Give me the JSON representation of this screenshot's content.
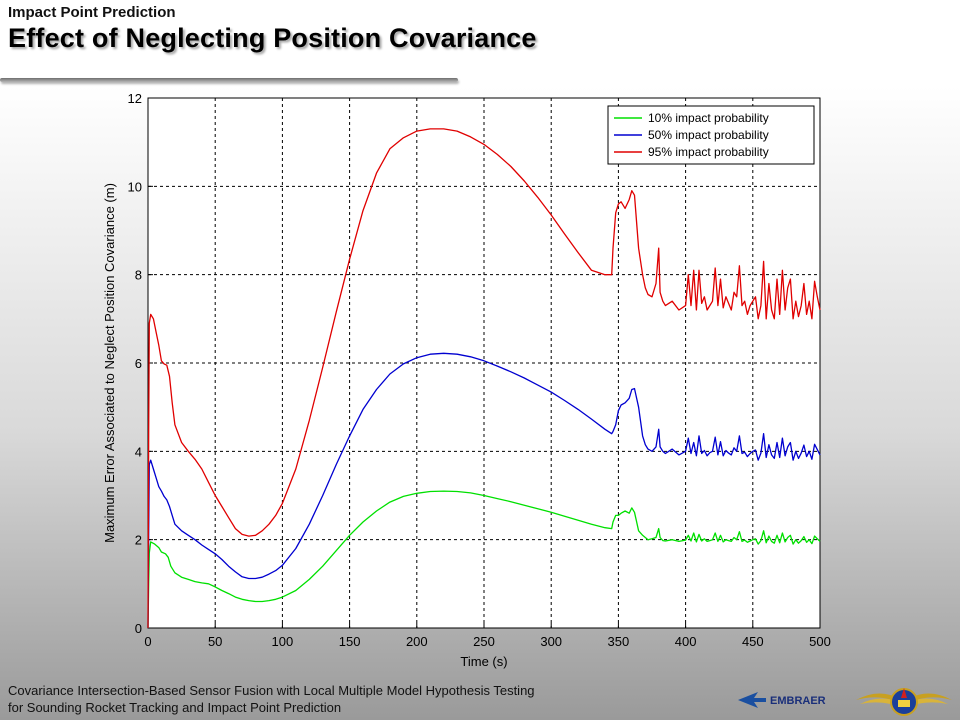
{
  "header": {
    "subtitle": "Impact Point Prediction",
    "title": "Effect of Neglecting Position Covariance"
  },
  "footer": {
    "line1": "Covariance Intersection-Based Sensor Fusion with Local Multiple Model Hypothesis Testing",
    "line2": "for Sounding Rocket Tracking and Impact Point Prediction"
  },
  "logos": {
    "embraer": "EMBRAER",
    "ita_icon": "ita-wings-emblem"
  },
  "chart_data": {
    "type": "line",
    "title": "",
    "xlabel": "Time (s)",
    "ylabel": "Maximum Error Associated to Neglect Position Covariance (m)",
    "xlim": [
      0,
      500
    ],
    "ylim": [
      0,
      12
    ],
    "xticks": [
      0,
      50,
      100,
      150,
      200,
      250,
      300,
      350,
      400,
      450,
      500
    ],
    "yticks": [
      0,
      2,
      4,
      6,
      8,
      10,
      12
    ],
    "grid": true,
    "legend_position": "top-right",
    "series": [
      {
        "name": "10% impact probability",
        "color": "#00e000",
        "x": [
          0,
          0.5,
          1,
          2,
          5,
          8,
          10,
          13,
          15,
          17,
          20,
          25,
          30,
          35,
          40,
          45,
          50,
          55,
          60,
          65,
          70,
          75,
          80,
          85,
          90,
          95,
          100,
          110,
          120,
          130,
          140,
          150,
          160,
          170,
          180,
          190,
          200,
          210,
          220,
          230,
          240,
          250,
          260,
          270,
          280,
          290,
          300,
          310,
          320,
          330,
          340,
          345,
          346,
          348,
          350,
          352,
          355,
          358,
          360,
          362,
          365,
          368,
          370,
          372,
          375,
          378,
          380,
          381,
          383,
          385,
          390,
          395,
          400,
          402,
          404,
          406,
          408,
          410,
          412,
          414,
          416,
          418,
          420,
          422,
          424,
          426,
          428,
          430,
          432,
          434,
          436,
          438,
          440,
          442,
          444,
          446,
          448,
          450,
          452,
          454,
          456,
          458,
          460,
          462,
          464,
          466,
          468,
          470,
          472,
          474,
          476,
          478,
          480,
          482,
          484,
          486,
          488,
          490,
          492,
          494,
          496,
          498,
          500
        ],
        "y": [
          0,
          1.0,
          1.7,
          1.95,
          1.9,
          1.82,
          1.72,
          1.68,
          1.6,
          1.4,
          1.25,
          1.15,
          1.1,
          1.05,
          1.02,
          1.0,
          0.93,
          0.85,
          0.78,
          0.7,
          0.65,
          0.62,
          0.6,
          0.6,
          0.62,
          0.65,
          0.7,
          0.85,
          1.1,
          1.4,
          1.75,
          2.1,
          2.4,
          2.65,
          2.85,
          2.98,
          3.05,
          3.09,
          3.1,
          3.09,
          3.06,
          3.0,
          2.93,
          2.86,
          2.78,
          2.7,
          2.62,
          2.53,
          2.44,
          2.35,
          2.27,
          2.25,
          2.4,
          2.55,
          2.55,
          2.6,
          2.65,
          2.6,
          2.72,
          2.62,
          2.2,
          2.1,
          2.05,
          2.0,
          2.02,
          2.05,
          2.25,
          2.05,
          1.98,
          1.97,
          2.0,
          1.96,
          1.99,
          2.1,
          1.97,
          2.15,
          1.95,
          2.12,
          1.97,
          2.02,
          1.96,
          1.98,
          2.0,
          2.15,
          1.96,
          2.1,
          1.95,
          2.0,
          1.98,
          1.96,
          2.05,
          2.0,
          2.18,
          1.96,
          1.99,
          1.94,
          1.97,
          2.0,
          2.02,
          1.9,
          1.98,
          2.2,
          1.93,
          2.08,
          1.96,
          1.92,
          2.1,
          1.93,
          2.15,
          1.95,
          2.05,
          2.1,
          1.9,
          2.0,
          1.92,
          1.98,
          2.07,
          1.94,
          2.0,
          1.91,
          2.08,
          2.02,
          1.96
        ]
      },
      {
        "name": "50% impact probability",
        "color": "#0000d0",
        "x": [
          0,
          0.5,
          1,
          2,
          4,
          6,
          8,
          10,
          12,
          14,
          16,
          18,
          20,
          25,
          30,
          35,
          40,
          45,
          50,
          55,
          60,
          65,
          70,
          75,
          80,
          85,
          90,
          95,
          100,
          110,
          120,
          130,
          140,
          150,
          160,
          170,
          180,
          190,
          200,
          210,
          220,
          230,
          240,
          250,
          260,
          270,
          280,
          290,
          300,
          310,
          320,
          330,
          340,
          345,
          346,
          348,
          350,
          352,
          355,
          358,
          360,
          362,
          365,
          368,
          370,
          372,
          375,
          378,
          380,
          381,
          383,
          385,
          390,
          395,
          400,
          402,
          404,
          406,
          408,
          410,
          412,
          414,
          416,
          418,
          420,
          422,
          424,
          426,
          428,
          430,
          432,
          434,
          436,
          438,
          440,
          442,
          444,
          446,
          448,
          450,
          452,
          454,
          456,
          458,
          460,
          462,
          464,
          466,
          468,
          470,
          472,
          474,
          476,
          478,
          480,
          482,
          484,
          486,
          488,
          490,
          492,
          494,
          496,
          498,
          500
        ],
        "y": [
          0,
          2.2,
          3.7,
          3.8,
          3.6,
          3.4,
          3.2,
          3.1,
          2.98,
          2.9,
          2.75,
          2.55,
          2.35,
          2.2,
          2.1,
          2.0,
          1.88,
          1.78,
          1.68,
          1.55,
          1.4,
          1.27,
          1.16,
          1.12,
          1.12,
          1.15,
          1.22,
          1.3,
          1.42,
          1.8,
          2.35,
          3.0,
          3.7,
          4.35,
          4.95,
          5.4,
          5.75,
          5.98,
          6.12,
          6.2,
          6.22,
          6.2,
          6.14,
          6.05,
          5.93,
          5.8,
          5.66,
          5.5,
          5.34,
          5.15,
          4.95,
          4.73,
          4.5,
          4.4,
          4.45,
          4.6,
          4.92,
          5.05,
          5.1,
          5.2,
          5.4,
          5.42,
          5.0,
          4.35,
          4.15,
          4.05,
          4.0,
          4.1,
          4.5,
          4.1,
          4.0,
          3.95,
          4.05,
          3.92,
          4.0,
          4.3,
          3.95,
          4.2,
          3.9,
          4.35,
          3.95,
          4.02,
          3.9,
          3.97,
          4.0,
          4.32,
          3.92,
          4.22,
          3.9,
          4.02,
          3.96,
          3.92,
          4.08,
          4.0,
          4.35,
          3.95,
          3.98,
          3.88,
          3.95,
          4.0,
          4.03,
          3.8,
          3.96,
          4.4,
          3.86,
          4.15,
          3.92,
          3.84,
          4.2,
          3.86,
          4.3,
          3.9,
          4.1,
          4.2,
          3.8,
          4.0,
          3.84,
          3.96,
          4.14,
          3.88,
          4.0,
          3.82,
          4.16,
          4.04,
          3.92
        ]
      },
      {
        "name": "95% impact probability",
        "color": "#e00000",
        "x": [
          0,
          0.5,
          1,
          2,
          4,
          6,
          8,
          10,
          12,
          14,
          16,
          18,
          20,
          25,
          30,
          35,
          40,
          45,
          50,
          55,
          60,
          65,
          70,
          75,
          80,
          85,
          90,
          95,
          100,
          110,
          120,
          130,
          140,
          150,
          160,
          170,
          180,
          190,
          200,
          210,
          220,
          230,
          240,
          250,
          260,
          270,
          280,
          290,
          300,
          310,
          320,
          330,
          340,
          345,
          346,
          348,
          350,
          352,
          355,
          358,
          360,
          362,
          365,
          368,
          370,
          372,
          375,
          378,
          380,
          381,
          383,
          385,
          390,
          395,
          400,
          402,
          404,
          406,
          408,
          410,
          412,
          414,
          416,
          418,
          420,
          422,
          424,
          426,
          428,
          430,
          432,
          434,
          436,
          438,
          440,
          442,
          444,
          446,
          448,
          450,
          452,
          454,
          456,
          458,
          460,
          462,
          464,
          466,
          468,
          470,
          472,
          474,
          476,
          478,
          480,
          482,
          484,
          486,
          488,
          490,
          492,
          494,
          496,
          498,
          500
        ],
        "y": [
          0,
          4.5,
          6.9,
          7.1,
          7.0,
          6.7,
          6.4,
          6.05,
          5.98,
          5.95,
          5.7,
          5.1,
          4.6,
          4.2,
          4.0,
          3.82,
          3.6,
          3.3,
          3.0,
          2.75,
          2.5,
          2.25,
          2.12,
          2.08,
          2.1,
          2.2,
          2.35,
          2.55,
          2.82,
          3.6,
          4.7,
          5.9,
          7.15,
          8.35,
          9.45,
          10.3,
          10.85,
          11.1,
          11.25,
          11.3,
          11.3,
          11.25,
          11.12,
          10.95,
          10.72,
          10.45,
          10.12,
          9.75,
          9.35,
          8.92,
          8.5,
          8.1,
          8.0,
          8.0,
          8.6,
          9.4,
          9.6,
          9.65,
          9.5,
          9.7,
          9.9,
          9.8,
          8.6,
          8.0,
          7.7,
          7.55,
          7.5,
          7.8,
          8.6,
          7.6,
          7.4,
          7.3,
          7.4,
          7.2,
          7.3,
          8.0,
          7.3,
          8.1,
          7.2,
          8.1,
          7.35,
          7.5,
          7.2,
          7.3,
          7.4,
          8.15,
          7.3,
          7.9,
          7.25,
          7.5,
          7.35,
          7.2,
          7.6,
          7.5,
          8.2,
          7.3,
          7.4,
          7.1,
          7.3,
          7.4,
          7.5,
          7.0,
          7.3,
          8.3,
          7.0,
          7.8,
          7.2,
          7.0,
          7.9,
          7.1,
          8.1,
          7.2,
          7.7,
          7.9,
          7.0,
          7.4,
          7.05,
          7.3,
          7.8,
          7.1,
          7.4,
          7.0,
          7.85,
          7.5,
          7.2
        ]
      }
    ]
  }
}
